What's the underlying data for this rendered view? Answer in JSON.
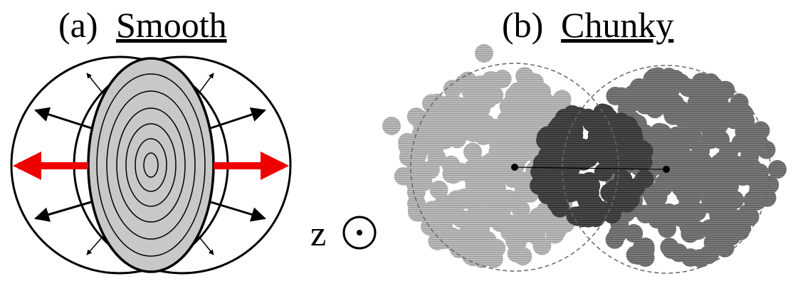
{
  "panels": [
    {
      "label": "(a)",
      "title": "Smooth"
    },
    {
      "label": "(b)",
      "title": "Chunky"
    }
  ],
  "axis_label": "z"
}
